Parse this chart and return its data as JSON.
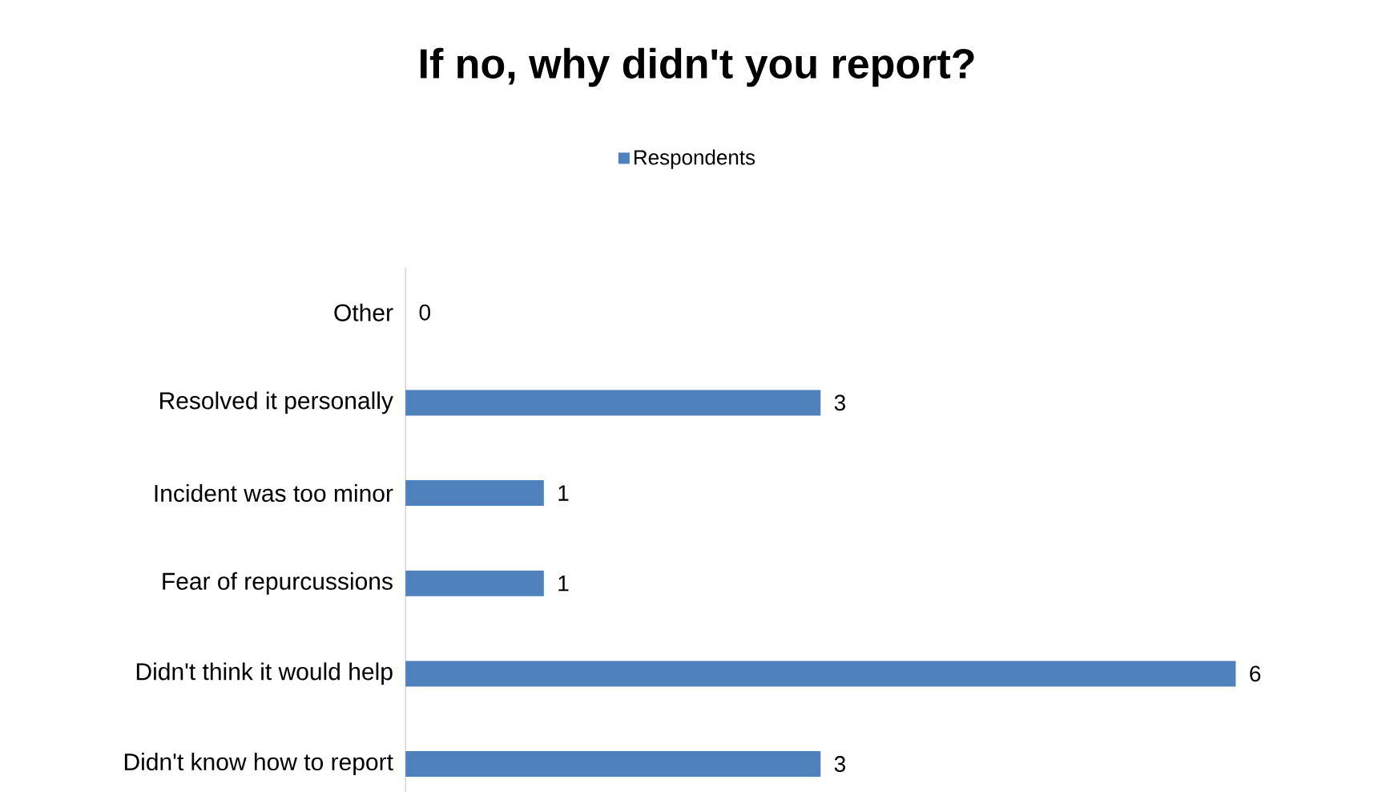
{
  "chart_data": {
    "type": "bar",
    "orientation": "horizontal",
    "title": "If no, why didn't you report?",
    "categories": [
      "Other",
      "Resolved it personally",
      "Incident was too minor",
      "Fear of repurcussions",
      "Didn't think it would help",
      "Didn't know how to report"
    ],
    "series": [
      {
        "name": "Respondents",
        "color": "#4f81bd",
        "values": [
          0,
          3,
          1,
          1,
          6,
          3
        ]
      }
    ],
    "data_labels": true,
    "legend": "top"
  }
}
